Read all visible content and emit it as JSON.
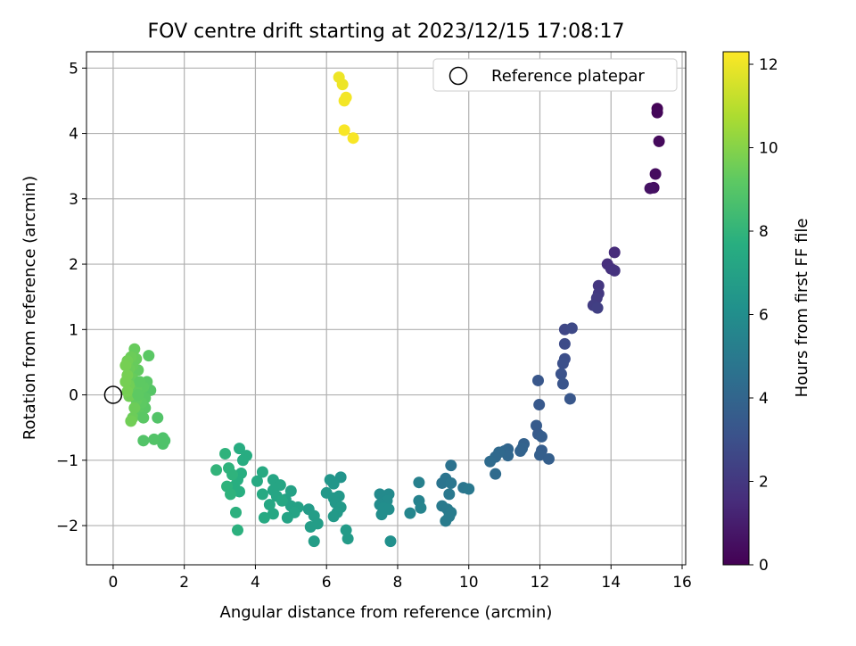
{
  "chart_data": {
    "type": "scatter",
    "title": "FOV centre drift starting at 2023/12/15 17:08:17",
    "xlabel": "Angular distance from reference (arcmin)",
    "ylabel": "Rotation from reference (arcmin)",
    "xlim": [
      -0.75,
      16.1
    ],
    "ylim": [
      -2.6,
      5.25
    ],
    "xticks": [
      0,
      2,
      4,
      6,
      8,
      10,
      12,
      14,
      16
    ],
    "yticks": [
      -2,
      -1,
      0,
      1,
      2,
      3,
      4,
      5
    ],
    "grid": true,
    "legend": {
      "position": "top-right",
      "entries": [
        {
          "label": "Reference platepar",
          "marker": "open-circle"
        }
      ]
    },
    "reference_point": {
      "x": 0,
      "y": 0
    },
    "colorbar": {
      "label": "Hours from first FF file",
      "range": [
        0,
        12.3
      ],
      "ticks": [
        0,
        2,
        4,
        6,
        8,
        10,
        12
      ],
      "colormap": "viridis"
    },
    "points": [
      {
        "x": 15.3,
        "y": 4.38,
        "h": 0.1
      },
      {
        "x": 15.3,
        "y": 4.32,
        "h": 0.2
      },
      {
        "x": 15.35,
        "y": 3.88,
        "h": 0.3
      },
      {
        "x": 15.25,
        "y": 3.38,
        "h": 0.4
      },
      {
        "x": 15.2,
        "y": 3.17,
        "h": 0.5
      },
      {
        "x": 15.1,
        "y": 3.16,
        "h": 0.6
      },
      {
        "x": 14.1,
        "y": 2.18,
        "h": 1.5
      },
      {
        "x": 13.9,
        "y": 2.0,
        "h": 1.6
      },
      {
        "x": 14.0,
        "y": 1.93,
        "h": 1.7
      },
      {
        "x": 14.1,
        "y": 1.9,
        "h": 1.8
      },
      {
        "x": 13.65,
        "y": 1.67,
        "h": 1.9
      },
      {
        "x": 13.65,
        "y": 1.55,
        "h": 2.0
      },
      {
        "x": 13.6,
        "y": 1.48,
        "h": 2.1
      },
      {
        "x": 13.5,
        "y": 1.37,
        "h": 2.2
      },
      {
        "x": 13.62,
        "y": 1.33,
        "h": 2.3
      },
      {
        "x": 12.7,
        "y": 1.0,
        "h": 2.6
      },
      {
        "x": 12.9,
        "y": 1.02,
        "h": 2.7
      },
      {
        "x": 12.7,
        "y": 0.78,
        "h": 2.8
      },
      {
        "x": 12.7,
        "y": 0.55,
        "h": 2.9
      },
      {
        "x": 12.65,
        "y": 0.48,
        "h": 3.0
      },
      {
        "x": 12.6,
        "y": 0.32,
        "h": 3.1
      },
      {
        "x": 12.65,
        "y": 0.17,
        "h": 3.2
      },
      {
        "x": 12.85,
        "y": -0.06,
        "h": 3.3
      },
      {
        "x": 11.95,
        "y": 0.22,
        "h": 3.3
      },
      {
        "x": 11.98,
        "y": -0.15,
        "h": 3.4
      },
      {
        "x": 11.9,
        "y": -0.47,
        "h": 3.5
      },
      {
        "x": 11.95,
        "y": -0.6,
        "h": 3.5
      },
      {
        "x": 12.05,
        "y": -0.64,
        "h": 3.6
      },
      {
        "x": 12.05,
        "y": -0.85,
        "h": 3.6
      },
      {
        "x": 12.0,
        "y": -0.92,
        "h": 3.7
      },
      {
        "x": 12.25,
        "y": -0.98,
        "h": 3.7
      },
      {
        "x": 11.55,
        "y": -0.75,
        "h": 3.8
      },
      {
        "x": 11.5,
        "y": -0.82,
        "h": 3.9
      },
      {
        "x": 11.45,
        "y": -0.86,
        "h": 3.9
      },
      {
        "x": 11.1,
        "y": -0.83,
        "h": 4.0
      },
      {
        "x": 11.0,
        "y": -0.86,
        "h": 4.1
      },
      {
        "x": 11.1,
        "y": -0.93,
        "h": 4.1
      },
      {
        "x": 10.85,
        "y": -0.88,
        "h": 4.2
      },
      {
        "x": 10.75,
        "y": -0.95,
        "h": 4.2
      },
      {
        "x": 10.6,
        "y": -1.02,
        "h": 4.3
      },
      {
        "x": 10.75,
        "y": -1.21,
        "h": 4.3
      },
      {
        "x": 9.5,
        "y": -1.08,
        "h": 4.6
      },
      {
        "x": 9.35,
        "y": -1.28,
        "h": 4.7
      },
      {
        "x": 9.25,
        "y": -1.35,
        "h": 4.7
      },
      {
        "x": 9.5,
        "y": -1.35,
        "h": 4.8
      },
      {
        "x": 9.85,
        "y": -1.42,
        "h": 4.8
      },
      {
        "x": 10.0,
        "y": -1.44,
        "h": 4.9
      },
      {
        "x": 9.45,
        "y": -1.52,
        "h": 4.9
      },
      {
        "x": 9.25,
        "y": -1.7,
        "h": 5.0
      },
      {
        "x": 9.4,
        "y": -1.75,
        "h": 5.0
      },
      {
        "x": 9.5,
        "y": -1.8,
        "h": 5.1
      },
      {
        "x": 9.45,
        "y": -1.86,
        "h": 5.1
      },
      {
        "x": 9.35,
        "y": -1.93,
        "h": 5.1
      },
      {
        "x": 8.6,
        "y": -1.34,
        "h": 5.3
      },
      {
        "x": 8.6,
        "y": -1.62,
        "h": 5.4
      },
      {
        "x": 8.65,
        "y": -1.73,
        "h": 5.5
      },
      {
        "x": 8.35,
        "y": -1.81,
        "h": 5.6
      },
      {
        "x": 7.5,
        "y": -1.52,
        "h": 5.8
      },
      {
        "x": 7.75,
        "y": -1.52,
        "h": 5.8
      },
      {
        "x": 7.7,
        "y": -1.62,
        "h": 5.9
      },
      {
        "x": 7.5,
        "y": -1.68,
        "h": 5.9
      },
      {
        "x": 7.6,
        "y": -1.73,
        "h": 6.0
      },
      {
        "x": 7.75,
        "y": -1.75,
        "h": 6.0
      },
      {
        "x": 7.55,
        "y": -1.83,
        "h": 6.0
      },
      {
        "x": 7.8,
        "y": -2.24,
        "h": 6.1
      },
      {
        "x": 6.4,
        "y": -1.26,
        "h": 6.3
      },
      {
        "x": 6.1,
        "y": -1.3,
        "h": 6.4
      },
      {
        "x": 6.2,
        "y": -1.36,
        "h": 6.4
      },
      {
        "x": 6.0,
        "y": -1.5,
        "h": 6.5
      },
      {
        "x": 6.35,
        "y": -1.55,
        "h": 6.5
      },
      {
        "x": 6.2,
        "y": -1.58,
        "h": 6.5
      },
      {
        "x": 6.25,
        "y": -1.65,
        "h": 6.5
      },
      {
        "x": 6.4,
        "y": -1.72,
        "h": 6.6
      },
      {
        "x": 6.3,
        "y": -1.8,
        "h": 6.6
      },
      {
        "x": 6.2,
        "y": -1.86,
        "h": 6.6
      },
      {
        "x": 6.55,
        "y": -2.07,
        "h": 6.7
      },
      {
        "x": 6.6,
        "y": -2.2,
        "h": 6.7
      },
      {
        "x": 5.5,
        "y": -1.75,
        "h": 6.7
      },
      {
        "x": 5.65,
        "y": -1.85,
        "h": 6.8
      },
      {
        "x": 5.55,
        "y": -2.02,
        "h": 6.8
      },
      {
        "x": 5.75,
        "y": -1.97,
        "h": 6.8
      },
      {
        "x": 5.65,
        "y": -2.24,
        "h": 6.8
      },
      {
        "x": 5.0,
        "y": -1.47,
        "h": 7.0
      },
      {
        "x": 4.85,
        "y": -1.6,
        "h": 7.0
      },
      {
        "x": 5.0,
        "y": -1.7,
        "h": 7.0
      },
      {
        "x": 5.2,
        "y": -1.72,
        "h": 7.0
      },
      {
        "x": 5.1,
        "y": -1.8,
        "h": 7.1
      },
      {
        "x": 4.9,
        "y": -1.88,
        "h": 7.1
      },
      {
        "x": 4.5,
        "y": -1.3,
        "h": 7.2
      },
      {
        "x": 4.7,
        "y": -1.38,
        "h": 7.2
      },
      {
        "x": 4.5,
        "y": -1.46,
        "h": 7.2
      },
      {
        "x": 4.6,
        "y": -1.55,
        "h": 7.2
      },
      {
        "x": 4.75,
        "y": -1.62,
        "h": 7.3
      },
      {
        "x": 4.4,
        "y": -1.68,
        "h": 7.3
      },
      {
        "x": 4.5,
        "y": -1.82,
        "h": 7.3
      },
      {
        "x": 4.2,
        "y": -1.18,
        "h": 7.4
      },
      {
        "x": 4.05,
        "y": -1.32,
        "h": 7.4
      },
      {
        "x": 4.2,
        "y": -1.52,
        "h": 7.4
      },
      {
        "x": 4.25,
        "y": -1.88,
        "h": 7.4
      },
      {
        "x": 3.55,
        "y": -0.82,
        "h": 7.6
      },
      {
        "x": 3.75,
        "y": -0.93,
        "h": 7.6
      },
      {
        "x": 3.65,
        "y": -1.0,
        "h": 7.6
      },
      {
        "x": 3.6,
        "y": -1.2,
        "h": 7.7
      },
      {
        "x": 3.5,
        "y": -1.3,
        "h": 7.7
      },
      {
        "x": 3.4,
        "y": -1.4,
        "h": 7.7
      },
      {
        "x": 3.55,
        "y": -1.48,
        "h": 7.7
      },
      {
        "x": 3.45,
        "y": -1.8,
        "h": 7.8
      },
      {
        "x": 3.5,
        "y": -2.07,
        "h": 7.8
      },
      {
        "x": 3.15,
        "y": -0.9,
        "h": 7.9
      },
      {
        "x": 3.25,
        "y": -1.12,
        "h": 7.9
      },
      {
        "x": 3.35,
        "y": -1.22,
        "h": 7.9
      },
      {
        "x": 3.2,
        "y": -1.4,
        "h": 7.9
      },
      {
        "x": 3.3,
        "y": -1.52,
        "h": 7.9
      },
      {
        "x": 2.9,
        "y": -1.15,
        "h": 8.0
      },
      {
        "x": 1.4,
        "y": -0.66,
        "h": 8.8
      },
      {
        "x": 1.4,
        "y": -0.75,
        "h": 8.8
      },
      {
        "x": 1.45,
        "y": -0.7,
        "h": 8.8
      },
      {
        "x": 1.25,
        "y": -0.35,
        "h": 8.9
      },
      {
        "x": 1.15,
        "y": -0.68,
        "h": 8.9
      },
      {
        "x": 0.85,
        "y": -0.7,
        "h": 8.9
      },
      {
        "x": 1.05,
        "y": 0.07,
        "h": 9.0
      },
      {
        "x": 1.0,
        "y": 0.6,
        "h": 9.1
      },
      {
        "x": 0.95,
        "y": 0.2,
        "h": 9.1
      },
      {
        "x": 0.9,
        "y": -0.05,
        "h": 9.1
      },
      {
        "x": 0.9,
        "y": -0.2,
        "h": 9.1
      },
      {
        "x": 0.85,
        "y": 0.12,
        "h": 9.2
      },
      {
        "x": 0.8,
        "y": -0.12,
        "h": 9.2
      },
      {
        "x": 0.75,
        "y": -0.3,
        "h": 9.2
      },
      {
        "x": 0.7,
        "y": 0.38,
        "h": 9.3
      },
      {
        "x": 0.65,
        "y": 0.1,
        "h": 9.3
      },
      {
        "x": 0.65,
        "y": -0.08,
        "h": 9.3
      },
      {
        "x": 0.6,
        "y": 0.7,
        "h": 9.4
      },
      {
        "x": 0.65,
        "y": 0.55,
        "h": 9.4
      },
      {
        "x": 0.55,
        "y": 0.45,
        "h": 9.4
      },
      {
        "x": 0.55,
        "y": 0.25,
        "h": 9.4
      },
      {
        "x": 0.6,
        "y": -0.2,
        "h": 9.5
      },
      {
        "x": 0.55,
        "y": -0.35,
        "h": 9.5
      },
      {
        "x": 0.5,
        "y": 0.58,
        "h": 9.5
      },
      {
        "x": 0.45,
        "y": 0.4,
        "h": 9.5
      },
      {
        "x": 0.45,
        "y": 0.15,
        "h": 9.6
      },
      {
        "x": 0.45,
        "y": -0.02,
        "h": 9.6
      },
      {
        "x": 0.5,
        "y": -0.4,
        "h": 9.6
      },
      {
        "x": 0.4,
        "y": 0.52,
        "h": 9.6
      },
      {
        "x": 0.4,
        "y": 0.3,
        "h": 9.7
      },
      {
        "x": 0.35,
        "y": 0.45,
        "h": 9.7
      },
      {
        "x": 0.35,
        "y": 0.2,
        "h": 9.7
      },
      {
        "x": 0.4,
        "y": 0.05,
        "h": 9.7
      },
      {
        "x": 0.7,
        "y": 0.0,
        "h": 9.2
      },
      {
        "x": 0.75,
        "y": 0.2,
        "h": 9.2
      },
      {
        "x": 0.85,
        "y": -0.35,
        "h": 9.1
      },
      {
        "x": 6.35,
        "y": 4.86,
        "h": 12.0
      },
      {
        "x": 6.45,
        "y": 4.75,
        "h": 12.0
      },
      {
        "x": 6.55,
        "y": 4.55,
        "h": 12.1
      },
      {
        "x": 6.5,
        "y": 4.5,
        "h": 12.1
      },
      {
        "x": 6.5,
        "y": 4.05,
        "h": 12.2
      },
      {
        "x": 6.75,
        "y": 3.93,
        "h": 12.2
      }
    ]
  }
}
